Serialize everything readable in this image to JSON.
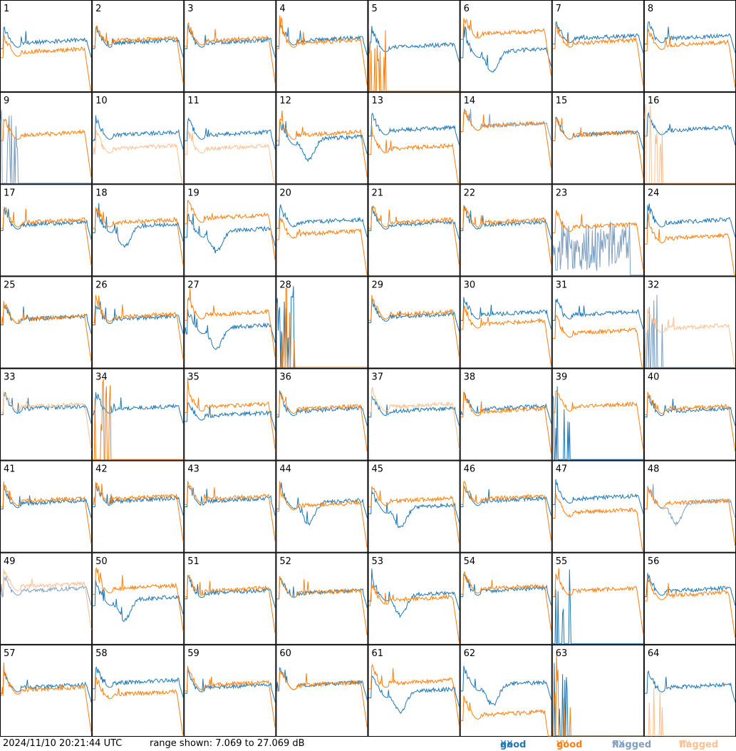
{
  "footer": {
    "timestamp": "2024/11/10 20:21:44 UTC",
    "range": "range shown: 7.069 to 27.069 dB"
  },
  "legend": [
    {
      "label": "good",
      "pol": "XX",
      "color": "#1f77b4"
    },
    {
      "label": "good",
      "pol": "YY",
      "color": "#ff7f0e"
    },
    {
      "label": "flagged",
      "pol": "XX",
      "color": "#7f9fbf"
    },
    {
      "label": "flagged",
      "pol": "YY",
      "color": "#ffbf8f"
    }
  ],
  "chart_data": {
    "type": "line",
    "grid": {
      "rows": 8,
      "cols": 8
    },
    "ylim": [
      7.069,
      27.069
    ],
    "yunit": "dB",
    "panels": [
      {
        "id": "1",
        "xx": "good",
        "yy": "good",
        "shape": "std",
        "xx_level": 18,
        "yy_level": 16
      },
      {
        "id": "2",
        "xx": "good",
        "yy": "good",
        "shape": "std",
        "xx_level": 18,
        "yy_level": 18.5
      },
      {
        "id": "3",
        "xx": "good",
        "yy": "good",
        "shape": "std",
        "xx_level": 18,
        "yy_level": 18.5
      },
      {
        "id": "4",
        "xx": "good",
        "yy": "good",
        "shape": "std",
        "xx_level": 18.5,
        "yy_level": 18
      },
      {
        "id": "5",
        "xx": "good",
        "yy": "good",
        "shape": "dead_yy",
        "xx_level": 17,
        "yy_level": 7.1
      },
      {
        "id": "6",
        "xx": "good",
        "yy": "good",
        "shape": "dip",
        "xx_level": 16,
        "yy_level": 20
      },
      {
        "id": "7",
        "xx": "good",
        "yy": "good",
        "shape": "std",
        "xx_level": 19,
        "yy_level": 18
      },
      {
        "id": "8",
        "xx": "good",
        "yy": "good",
        "shape": "std",
        "xx_level": 19,
        "yy_level": 17.5
      },
      {
        "id": "9",
        "xx": "flagged",
        "yy": "good",
        "shape": "dead_xx",
        "xx_level": 8,
        "yy_level": 18
      },
      {
        "id": "10",
        "xx": "good",
        "yy": "flagged",
        "shape": "std",
        "xx_level": 18,
        "yy_level": 15
      },
      {
        "id": "11",
        "xx": "good",
        "yy": "flagged",
        "shape": "std",
        "xx_level": 18,
        "yy_level": 15
      },
      {
        "id": "12",
        "xx": "good",
        "yy": "good",
        "shape": "dip",
        "xx_level": 17,
        "yy_level": 18
      },
      {
        "id": "13",
        "xx": "good",
        "yy": "good",
        "shape": "std",
        "xx_level": 19,
        "yy_level": 15
      },
      {
        "id": "14",
        "xx": "flagged",
        "yy": "good",
        "shape": "std",
        "xx_level": 20,
        "yy_level": 20
      },
      {
        "id": "15",
        "xx": "good",
        "yy": "good",
        "shape": "std",
        "xx_level": 18,
        "yy_level": 18
      },
      {
        "id": "16",
        "xx": "good",
        "yy": "flagged",
        "shape": "dead_yy",
        "xx_level": 19,
        "yy_level": 7.1
      },
      {
        "id": "17",
        "xx": "good",
        "yy": "good",
        "shape": "std",
        "xx_level": 18.5,
        "yy_level": 19
      },
      {
        "id": "18",
        "xx": "good",
        "yy": "good",
        "shape": "dip",
        "xx_level": 18,
        "yy_level": 19
      },
      {
        "id": "19",
        "xx": "good",
        "yy": "good",
        "shape": "dip",
        "xx_level": 17,
        "yy_level": 20
      },
      {
        "id": "20",
        "xx": "good",
        "yy": "good",
        "shape": "std",
        "xx_level": 19,
        "yy_level": 16.5
      },
      {
        "id": "21",
        "xx": "good",
        "yy": "good",
        "shape": "std",
        "xx_level": 18.5,
        "yy_level": 19
      },
      {
        "id": "22",
        "xx": "good",
        "yy": "good",
        "shape": "std",
        "xx_level": 18.5,
        "yy_level": 19
      },
      {
        "id": "23",
        "xx": "flagged",
        "yy": "good",
        "shape": "noisy_xx",
        "xx_level": 13,
        "yy_level": 18
      },
      {
        "id": "24",
        "xx": "good",
        "yy": "good",
        "shape": "std",
        "xx_level": 19,
        "yy_level": 15.5
      },
      {
        "id": "25",
        "xx": "good",
        "yy": "good",
        "shape": "std",
        "xx_level": 18,
        "yy_level": 18
      },
      {
        "id": "26",
        "xx": "good",
        "yy": "good",
        "shape": "std",
        "xx_level": 18,
        "yy_level": 18.5
      },
      {
        "id": "27",
        "xx": "good",
        "yy": "good",
        "shape": "dip",
        "xx_level": 16,
        "yy_level": 19
      },
      {
        "id": "28",
        "xx": "good",
        "yy": "good",
        "shape": "dead_both",
        "xx_level": 7.1,
        "yy_level": 7.1
      },
      {
        "id": "29",
        "xx": "good",
        "yy": "good",
        "shape": "std",
        "xx_level": 18.5,
        "yy_level": 19
      },
      {
        "id": "30",
        "xx": "good",
        "yy": "good",
        "shape": "std",
        "xx_level": 19,
        "yy_level": 17
      },
      {
        "id": "31",
        "xx": "good",
        "yy": "good",
        "shape": "std",
        "xx_level": 19,
        "yy_level": 15
      },
      {
        "id": "32",
        "xx": "flagged",
        "yy": "flagged",
        "shape": "dead_xx",
        "xx_level": 7.1,
        "yy_level": 16
      },
      {
        "id": "33",
        "xx": "good",
        "yy": "flagged",
        "shape": "std",
        "xx_level": 18.5,
        "yy_level": 19
      },
      {
        "id": "34",
        "xx": "good",
        "yy": "good",
        "shape": "dead_yy",
        "xx_level": 18.5,
        "yy_level": 7.5
      },
      {
        "id": "35",
        "xx": "good",
        "yy": "good",
        "shape": "std",
        "xx_level": 17,
        "yy_level": 19
      },
      {
        "id": "36",
        "xx": "good",
        "yy": "good",
        "shape": "std",
        "xx_level": 18,
        "yy_level": 18.5
      },
      {
        "id": "37",
        "xx": "good",
        "yy": "flagged",
        "shape": "std",
        "xx_level": 18,
        "yy_level": 19
      },
      {
        "id": "38",
        "xx": "good",
        "yy": "good",
        "shape": "std",
        "xx_level": 18.5,
        "yy_level": 18
      },
      {
        "id": "39",
        "xx": "good",
        "yy": "good",
        "shape": "dead_xx",
        "xx_level": 7.1,
        "yy_level": 19
      },
      {
        "id": "40",
        "xx": "good",
        "yy": "good",
        "shape": "std",
        "xx_level": 18,
        "yy_level": 18.5
      },
      {
        "id": "41",
        "xx": "good",
        "yy": "good",
        "shape": "std",
        "xx_level": 18,
        "yy_level": 18.5
      },
      {
        "id": "42",
        "xx": "good",
        "yy": "good",
        "shape": "std",
        "xx_level": 18.5,
        "yy_level": 19
      },
      {
        "id": "43",
        "xx": "good",
        "yy": "good",
        "shape": "std",
        "xx_level": 18.5,
        "yy_level": 19
      },
      {
        "id": "44",
        "xx": "good",
        "yy": "good",
        "shape": "dip",
        "xx_level": 18,
        "yy_level": 17.5
      },
      {
        "id": "45",
        "xx": "good",
        "yy": "good",
        "shape": "dip",
        "xx_level": 17,
        "yy_level": 18.5
      },
      {
        "id": "46",
        "xx": "good",
        "yy": "good",
        "shape": "std",
        "xx_level": 18.5,
        "yy_level": 19
      },
      {
        "id": "47",
        "xx": "good",
        "yy": "good",
        "shape": "std",
        "xx_level": 19,
        "yy_level": 16
      },
      {
        "id": "48",
        "xx": "flagged",
        "yy": "good",
        "shape": "dip",
        "xx_level": 18,
        "yy_level": 18
      },
      {
        "id": "49",
        "xx": "flagged",
        "yy": "flagged",
        "shape": "std",
        "xx_level": 19,
        "yy_level": 20
      },
      {
        "id": "50",
        "xx": "good",
        "yy": "good",
        "shape": "dip",
        "xx_level": 17,
        "yy_level": 19.5
      },
      {
        "id": "51",
        "xx": "good",
        "yy": "good",
        "shape": "std",
        "xx_level": 18.5,
        "yy_level": 19
      },
      {
        "id": "52",
        "xx": "good",
        "yy": "good",
        "shape": "std",
        "xx_level": 18.5,
        "yy_level": 18.5
      },
      {
        "id": "53",
        "xx": "good",
        "yy": "good",
        "shape": "dip",
        "xx_level": 18,
        "yy_level": 17
      },
      {
        "id": "54",
        "xx": "good",
        "yy": "good",
        "shape": "std",
        "xx_level": 19,
        "yy_level": 19.5
      },
      {
        "id": "55",
        "xx": "good",
        "yy": "good",
        "shape": "dead_xx",
        "xx_level": 7.5,
        "yy_level": 19
      },
      {
        "id": "56",
        "xx": "good",
        "yy": "good",
        "shape": "std",
        "xx_level": 19,
        "yy_level": 18
      },
      {
        "id": "57",
        "xx": "good",
        "yy": "good",
        "shape": "std",
        "xx_level": 18,
        "yy_level": 17.5
      },
      {
        "id": "58",
        "xx": "good",
        "yy": "good",
        "shape": "std",
        "xx_level": 19,
        "yy_level": 16.5
      },
      {
        "id": "59",
        "xx": "good",
        "yy": "good",
        "shape": "std",
        "xx_level": 18,
        "yy_level": 18.5
      },
      {
        "id": "60",
        "xx": "good",
        "yy": "good",
        "shape": "std",
        "xx_level": 18.5,
        "yy_level": 18.5
      },
      {
        "id": "61",
        "xx": "good",
        "yy": "good",
        "shape": "dip",
        "xx_level": 17,
        "yy_level": 19
      },
      {
        "id": "62",
        "xx": "good",
        "yy": "good",
        "shape": "dip",
        "xx_level": 18.5,
        "yy_level": 12
      },
      {
        "id": "63",
        "xx": "good",
        "yy": "good",
        "shape": "dead_both",
        "xx_level": 7.1,
        "yy_level": 7.1
      },
      {
        "id": "64",
        "xx": "good",
        "yy": "flagged",
        "shape": "dead_yy",
        "xx_level": 18,
        "yy_level": 7.1
      }
    ]
  }
}
